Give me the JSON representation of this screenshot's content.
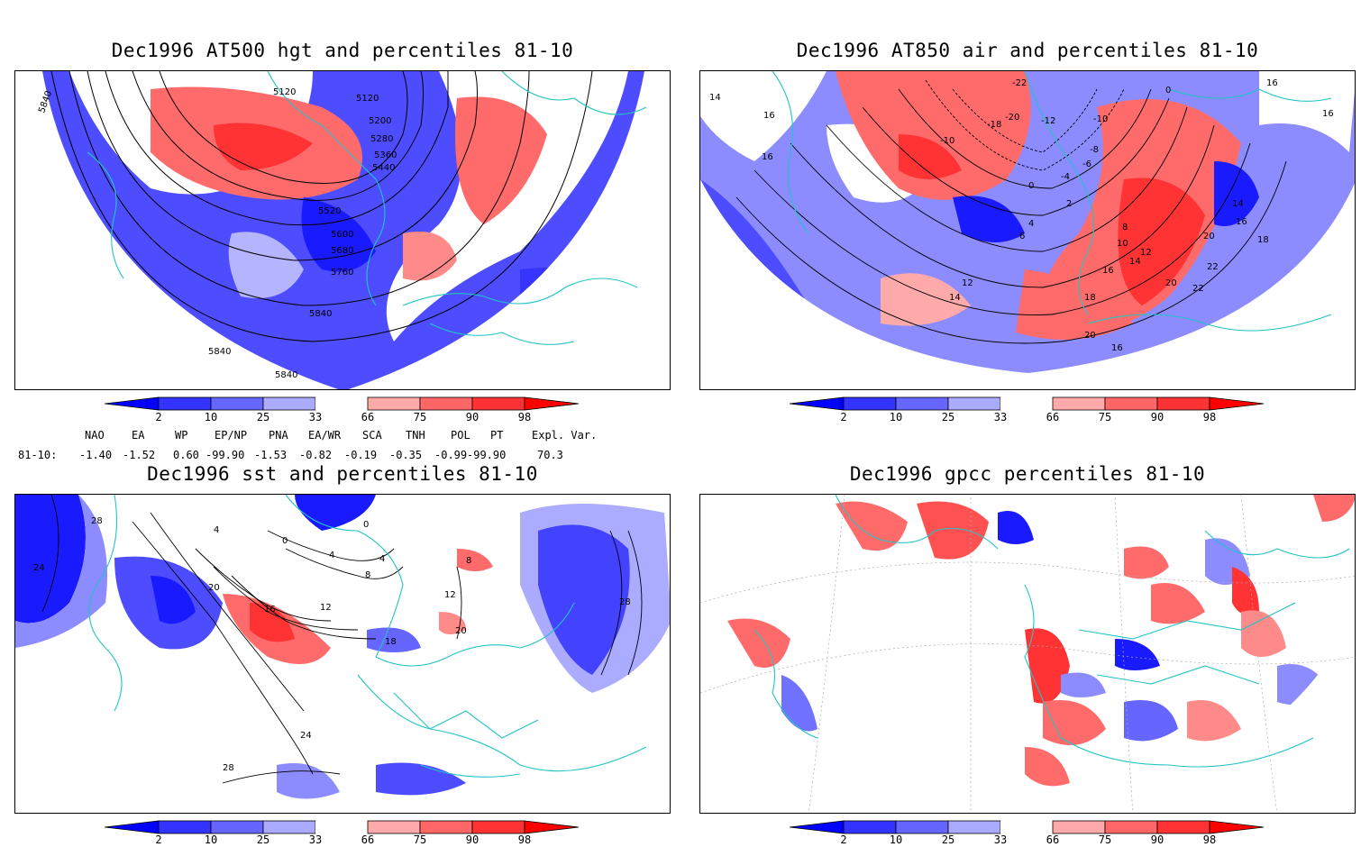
{
  "panels": [
    {
      "title": "Dec1996 AT500 hgt and percentiles 81-10",
      "contour_labels": [
        "5120",
        "5120",
        "5200",
        "5280",
        "5360",
        "5440",
        "5520",
        "5600",
        "5680",
        "5760",
        "5840",
        "5840",
        "5840",
        "5840"
      ]
    },
    {
      "title": "Dec1996 AT850 air and percentiles 81-10",
      "contour_labels": [
        "14",
        "16",
        "16",
        "-22",
        "-20",
        "-18",
        "-12",
        "-10",
        "-10",
        "-8",
        "-6",
        "-4",
        "0",
        "2",
        "4",
        "6",
        "0",
        "16",
        "16",
        "14",
        "16",
        "18",
        "20",
        "22",
        "8",
        "10",
        "12",
        "14",
        "16",
        "18",
        "20",
        "22",
        "12",
        "14",
        "16",
        "20"
      ]
    },
    {
      "title": "Dec1996 sst and percentiles 81-10",
      "contour_labels": [
        "28",
        "24",
        "4",
        "0",
        "0",
        "4",
        "8",
        "20",
        "16",
        "12",
        "4",
        "12",
        "20",
        "18",
        "8",
        "28",
        "24",
        "28"
      ]
    },
    {
      "title": "Dec1996 gpcc percentiles 81-10",
      "contour_labels": []
    }
  ],
  "colorbar": {
    "labels": [
      "2",
      "10",
      "25",
      "33",
      "66",
      "75",
      "90",
      "98"
    ],
    "colors": [
      "#0000ff",
      "#3333ff",
      "#6666ff",
      "#aaaaff",
      "#ffaaaa",
      "#ff6666",
      "#ff3333",
      "#ff0000"
    ]
  },
  "indices": {
    "names": [
      "NAO",
      "EA",
      "WP",
      "EP/NP",
      "PNA",
      "EA/WR",
      "SCA",
      "TNH",
      "POL",
      "PT",
      "Expl. Var."
    ],
    "row_label": "81-10:",
    "values": [
      "-1.40",
      "-1.52",
      "0.60",
      "-99.90",
      "-1.53",
      "-0.82",
      "-0.19",
      "-0.35",
      "-0.99",
      "-99.90",
      "70.3"
    ]
  },
  "palette": {
    "blue_dark": "#1a1aff",
    "blue_mid": "#4d4dff",
    "blue_light": "#8c8cff",
    "blue_pale": "#b4b4ff",
    "red_pale": "#ffaaaa",
    "red_mid": "#ff6b6b",
    "red_dark": "#ff3333",
    "coast": "#22c4c4"
  }
}
